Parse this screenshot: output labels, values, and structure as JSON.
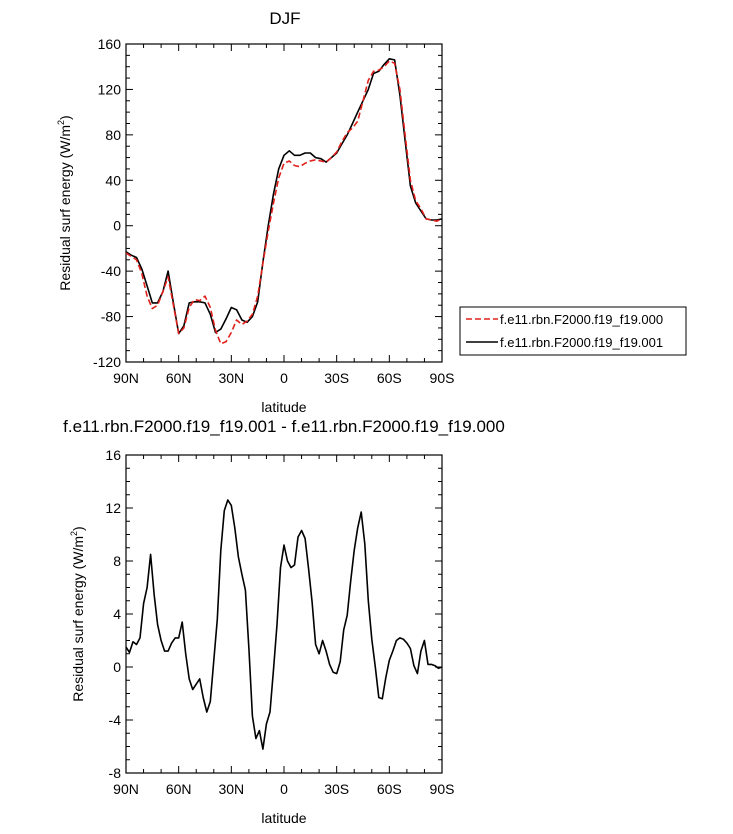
{
  "chart_data": [
    {
      "type": "line",
      "title": "DJF",
      "xlabel": "latitude",
      "ylabel": "Residual surf energy (W/m",
      "ylabel_sup": "2",
      "ylabel_close": ")",
      "xlim": [
        90,
        -90
      ],
      "ylim": [
        -120,
        160
      ],
      "x_ticks": [
        90,
        60,
        30,
        0,
        -30,
        -60,
        -90
      ],
      "x_tick_labels": [
        "90N",
        "60N",
        "30N",
        "0",
        "30S",
        "60S",
        "90S"
      ],
      "y_ticks": [
        -120,
        -80,
        -40,
        0,
        40,
        80,
        120,
        160
      ],
      "y_tick_labels": [
        "-120",
        "-80",
        "-40",
        "0",
        "40",
        "80",
        "120",
        "160"
      ],
      "grid": false,
      "legend_position": "right, outside plot",
      "series": [
        {
          "name": "f.e11.rbn.F2000.f19_f19.000",
          "color": "#e0201b",
          "dash": "dashed",
          "x": [
            90,
            87,
            84,
            81,
            78,
            75,
            72,
            69,
            66,
            63,
            60,
            57,
            54,
            51,
            48,
            45,
            42,
            39,
            36,
            33,
            30,
            27,
            24,
            21,
            18,
            15,
            12,
            9,
            6,
            3,
            0,
            -3,
            -6,
            -9,
            -12,
            -15,
            -18,
            -21,
            -24,
            -27,
            -30,
            -33,
            -36,
            -39,
            -42,
            -45,
            -48,
            -51,
            -54,
            -57,
            -60,
            -63,
            -66,
            -69,
            -72,
            -75,
            -78,
            -81,
            -84,
            -87,
            -90
          ],
          "y": [
            -24,
            -27,
            -30,
            -42,
            -62,
            -73,
            -70,
            -58,
            -45,
            -70,
            -95,
            -90,
            -72,
            -65,
            -66,
            -62,
            -72,
            -92,
            -104,
            -102,
            -94,
            -83,
            -87,
            -84,
            -78,
            -62,
            -33,
            -5,
            20,
            42,
            55,
            57,
            53,
            52,
            55,
            57,
            58,
            57,
            56,
            60,
            65,
            74,
            82,
            86,
            92,
            110,
            128,
            136,
            137,
            140,
            145,
            143,
            120,
            80,
            40,
            22,
            15,
            6,
            5,
            4,
            6
          ]
        },
        {
          "name": "f.e11.rbn.F2000.f19_f19.001",
          "color": "#000000",
          "dash": "solid",
          "x": [
            90,
            87,
            84,
            81,
            78,
            75,
            72,
            69,
            66,
            63,
            60,
            57,
            54,
            51,
            48,
            45,
            42,
            39,
            36,
            33,
            30,
            27,
            24,
            21,
            18,
            15,
            12,
            9,
            6,
            3,
            0,
            -3,
            -6,
            -9,
            -12,
            -15,
            -18,
            -21,
            -24,
            -27,
            -30,
            -33,
            -36,
            -39,
            -42,
            -45,
            -48,
            -51,
            -54,
            -57,
            -60,
            -63,
            -66,
            -69,
            -72,
            -75,
            -78,
            -81,
            -84,
            -87,
            -90
          ],
          "y": [
            -23,
            -26,
            -28,
            -38,
            -53,
            -68,
            -68,
            -58,
            -40,
            -68,
            -95,
            -88,
            -68,
            -67,
            -67,
            -68,
            -78,
            -94,
            -91,
            -82,
            -72,
            -74,
            -83,
            -85,
            -80,
            -67,
            -32,
            0,
            28,
            50,
            62,
            66,
            62,
            62,
            64,
            64,
            60,
            59,
            56,
            60,
            64,
            72,
            80,
            90,
            100,
            110,
            120,
            134,
            136,
            142,
            147,
            146,
            115,
            75,
            35,
            20,
            13,
            6,
            5,
            5,
            6
          ]
        }
      ]
    },
    {
      "type": "line",
      "title": "f.e11.rbn.F2000.f19_f19.001 - f.e11.rbn.F2000.f19_f19.000",
      "xlabel": "latitude",
      "ylabel": "Residual surf energy (W/m",
      "ylabel_sup": "2",
      "ylabel_close": ")",
      "xlim": [
        90,
        -90
      ],
      "ylim": [
        -8,
        16
      ],
      "x_ticks": [
        90,
        60,
        30,
        0,
        -30,
        -60,
        -90
      ],
      "x_tick_labels": [
        "90N",
        "60N",
        "30N",
        "0",
        "30S",
        "60S",
        "90S"
      ],
      "y_ticks": [
        -8,
        -4,
        0,
        4,
        8,
        12,
        16
      ],
      "y_tick_labels": [
        "-8",
        "-4",
        "0",
        "4",
        "8",
        "12",
        "16"
      ],
      "grid": false,
      "series": [
        {
          "color": "#000000",
          "dash": "solid",
          "x": [
            90,
            88,
            86,
            84,
            82,
            80,
            78,
            76,
            74,
            72,
            70,
            68,
            66,
            64,
            62,
            60,
            58,
            56,
            54,
            52,
            50,
            48,
            46,
            44,
            42,
            40,
            38,
            36,
            34,
            32,
            30,
            28,
            26,
            24,
            22,
            20,
            18,
            16,
            14,
            12,
            10,
            8,
            6,
            4,
            2,
            0,
            -2,
            -4,
            -6,
            -8,
            -10,
            -12,
            -14,
            -16,
            -18,
            -20,
            -22,
            -24,
            -26,
            -28,
            -30,
            -32,
            -34,
            -36,
            -38,
            -40,
            -42,
            -44,
            -46,
            -48,
            -50,
            -52,
            -54,
            -56,
            -58,
            -60,
            -62,
            -64,
            -66,
            -68,
            -70,
            -72,
            -74,
            -76,
            -78,
            -80,
            -82,
            -84,
            -86,
            -88,
            -90
          ],
          "y": [
            1.5,
            1.1,
            1.9,
            1.7,
            2.2,
            4.8,
            6.0,
            8.5,
            5.5,
            3.2,
            2.0,
            1.2,
            1.2,
            1.8,
            2.2,
            2.2,
            3.4,
            1.0,
            -0.9,
            -1.7,
            -1.3,
            -0.9,
            -2.3,
            -3.4,
            -2.6,
            0.5,
            3.6,
            8.8,
            11.8,
            12.6,
            12.2,
            10.5,
            8.3,
            7.0,
            5.8,
            1.4,
            -3.7,
            -5.4,
            -4.8,
            -6.2,
            -4.3,
            -3.4,
            -0.2,
            3.2,
            7.5,
            9.2,
            8.0,
            7.5,
            7.7,
            9.8,
            10.3,
            9.7,
            7.4,
            4.9,
            1.7,
            1.0,
            2.0,
            1.2,
            0.2,
            -0.4,
            -0.5,
            0.4,
            2.8,
            3.9,
            6.5,
            8.8,
            10.5,
            11.7,
            9.3,
            5.0,
            2.1,
            0.0,
            -2.3,
            -2.4,
            -0.8,
            0.5,
            1.2,
            2.0,
            2.2,
            2.1,
            1.8,
            1.4,
            0.1,
            -0.5,
            1.2,
            2.0,
            0.2,
            0.2,
            0.1,
            -0.1,
            0.0
          ]
        }
      ]
    }
  ]
}
